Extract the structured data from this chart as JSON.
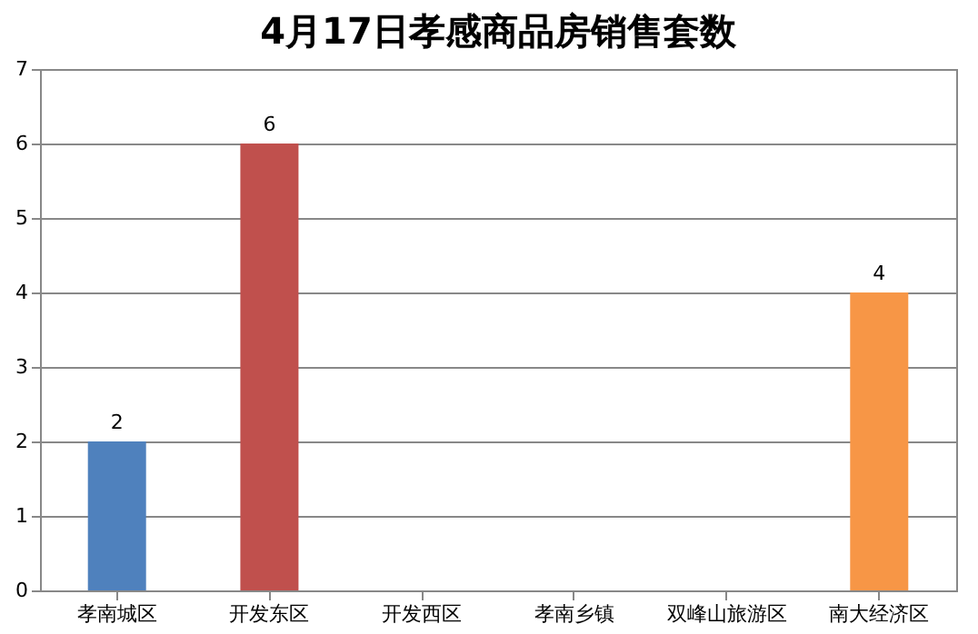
{
  "chart_data": {
    "type": "bar",
    "title": "4月17日孝感商品房销售套数",
    "categories": [
      "孝南城区",
      "开发东区",
      "开发西区",
      "孝南乡镇",
      "双峰山旅游区",
      "南大经济区"
    ],
    "values": [
      2,
      6,
      0,
      0,
      0,
      4
    ],
    "colors": [
      "#4f81bd",
      "#c0504d",
      "#9bbb59",
      "#8064a2",
      "#4bacc6",
      "#f79646"
    ],
    "value_labels": [
      "2",
      "6",
      null,
      null,
      null,
      "4"
    ],
    "ylim": [
      0,
      7
    ],
    "yticks": [
      0,
      1,
      2,
      3,
      4,
      5,
      6,
      7
    ],
    "grid": "y"
  }
}
